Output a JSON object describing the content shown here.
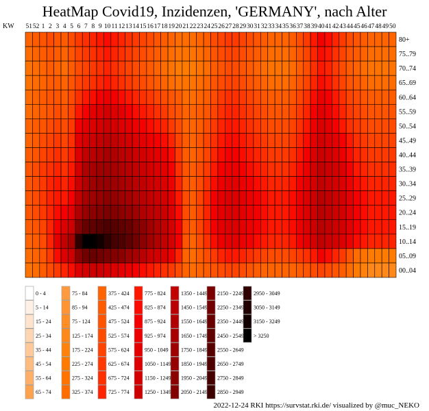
{
  "chart_data": {
    "type": "heatmap",
    "title": "HeatMap Covid19, Inzidenzen, 'GERMANY', nach Alter",
    "xlabel": "KW",
    "x": [
      "51",
      "52",
      "1",
      "2",
      "3",
      "4",
      "5",
      "6",
      "7",
      "8",
      "9",
      "10",
      "11",
      "12",
      "13",
      "14",
      "15",
      "16",
      "17",
      "18",
      "19",
      "20",
      "21",
      "22",
      "23",
      "24",
      "25",
      "26",
      "27",
      "28",
      "29",
      "30",
      "31",
      "32",
      "33",
      "34",
      "35",
      "36",
      "37",
      "38",
      "39",
      "40",
      "41",
      "42",
      "43",
      "44",
      "45",
      "46",
      "47",
      "48",
      "49",
      "50"
    ],
    "y": [
      "80+",
      "75..79",
      "70..74",
      "65..69",
      "60..64",
      "55..59",
      "50..54",
      "45..49",
      "40..44",
      "35..39",
      "30..34",
      "25..29",
      "20..24",
      "15..19",
      "10..14",
      "05..09",
      "00..04"
    ],
    "values": [
      [
        375,
        425,
        475,
        525,
        475,
        425,
        525,
        625,
        675,
        725,
        775,
        825,
        775,
        725,
        675,
        625,
        575,
        525,
        475,
        425,
        375,
        325,
        325,
        325,
        375,
        425,
        525,
        575,
        625,
        625,
        575,
        525,
        475,
        425,
        375,
        375,
        375,
        425,
        525,
        625,
        775,
        875,
        825,
        725,
        625,
        525,
        475,
        425,
        375,
        375,
        375,
        375
      ],
      [
        325,
        375,
        425,
        475,
        425,
        375,
        475,
        575,
        625,
        675,
        725,
        775,
        725,
        675,
        625,
        575,
        525,
        475,
        425,
        375,
        325,
        275,
        275,
        275,
        325,
        375,
        475,
        525,
        575,
        575,
        525,
        475,
        425,
        375,
        325,
        325,
        325,
        375,
        475,
        575,
        725,
        825,
        775,
        675,
        575,
        475,
        425,
        375,
        325,
        325,
        325,
        325
      ],
      [
        275,
        325,
        375,
        425,
        375,
        325,
        425,
        525,
        575,
        625,
        675,
        725,
        675,
        625,
        575,
        525,
        475,
        425,
        375,
        325,
        275,
        225,
        225,
        225,
        275,
        325,
        425,
        475,
        525,
        525,
        475,
        425,
        375,
        325,
        275,
        275,
        275,
        325,
        425,
        525,
        675,
        775,
        725,
        625,
        525,
        425,
        375,
        325,
        275,
        275,
        275,
        275
      ],
      [
        275,
        325,
        375,
        425,
        425,
        375,
        475,
        575,
        625,
        675,
        725,
        775,
        725,
        675,
        625,
        575,
        525,
        475,
        425,
        375,
        325,
        275,
        275,
        275,
        325,
        375,
        475,
        525,
        575,
        575,
        525,
        475,
        425,
        375,
        325,
        325,
        325,
        375,
        475,
        575,
        725,
        825,
        775,
        675,
        575,
        475,
        425,
        375,
        325,
        325,
        325,
        325
      ],
      [
        325,
        375,
        425,
        475,
        475,
        425,
        525,
        675,
        775,
        825,
        875,
        925,
        875,
        825,
        775,
        725,
        675,
        625,
        575,
        525,
        475,
        425,
        325,
        325,
        375,
        425,
        525,
        625,
        675,
        675,
        625,
        575,
        525,
        475,
        425,
        425,
        425,
        475,
        575,
        675,
        825,
        925,
        875,
        775,
        675,
        575,
        525,
        475,
        425,
        425,
        425,
        425
      ],
      [
        325,
        375,
        425,
        475,
        525,
        475,
        575,
        775,
        875,
        975,
        1050,
        1150,
        1050,
        975,
        875,
        825,
        775,
        725,
        675,
        625,
        525,
        475,
        375,
        375,
        425,
        475,
        575,
        675,
        725,
        725,
        675,
        625,
        575,
        525,
        475,
        475,
        475,
        525,
        625,
        725,
        875,
        975,
        925,
        825,
        725,
        625,
        575,
        525,
        475,
        475,
        475,
        475
      ],
      [
        375,
        425,
        475,
        525,
        575,
        525,
        625,
        875,
        975,
        1050,
        1150,
        1250,
        1150,
        1050,
        975,
        925,
        875,
        825,
        775,
        725,
        625,
        525,
        375,
        375,
        425,
        525,
        625,
        725,
        775,
        775,
        725,
        675,
        625,
        575,
        525,
        525,
        525,
        575,
        675,
        775,
        925,
        1050,
        975,
        875,
        775,
        675,
        625,
        575,
        525,
        525,
        525,
        525
      ],
      [
        375,
        425,
        525,
        575,
        625,
        575,
        675,
        975,
        1150,
        1250,
        1350,
        1450,
        1350,
        1250,
        1150,
        1050,
        975,
        925,
        875,
        825,
        725,
        575,
        425,
        375,
        475,
        575,
        675,
        775,
        825,
        825,
        775,
        725,
        675,
        625,
        575,
        575,
        575,
        625,
        725,
        825,
        975,
        1150,
        1050,
        975,
        875,
        775,
        675,
        625,
        575,
        575,
        575,
        575
      ],
      [
        425,
        475,
        575,
        625,
        675,
        625,
        725,
        1050,
        1350,
        1450,
        1550,
        1650,
        1550,
        1450,
        1350,
        1250,
        1150,
        1050,
        975,
        925,
        825,
        625,
        425,
        375,
        475,
        575,
        725,
        825,
        875,
        875,
        825,
        775,
        725,
        675,
        625,
        625,
        625,
        675,
        775,
        875,
        1050,
        1250,
        1150,
        1050,
        925,
        825,
        725,
        675,
        625,
        625,
        625,
        625
      ],
      [
        475,
        525,
        625,
        675,
        725,
        675,
        775,
        1150,
        1550,
        1650,
        1750,
        1750,
        1650,
        1550,
        1450,
        1350,
        1250,
        1150,
        1050,
        975,
        875,
        675,
        475,
        425,
        525,
        625,
        775,
        875,
        925,
        925,
        875,
        825,
        775,
        725,
        675,
        675,
        675,
        725,
        825,
        925,
        1150,
        1350,
        1250,
        1150,
        1050,
        875,
        775,
        725,
        675,
        675,
        675,
        675
      ],
      [
        475,
        525,
        625,
        725,
        775,
        725,
        825,
        1250,
        1550,
        1750,
        1850,
        1850,
        1750,
        1650,
        1550,
        1450,
        1350,
        1250,
        1150,
        1050,
        925,
        725,
        475,
        425,
        525,
        675,
        825,
        925,
        975,
        975,
        925,
        875,
        825,
        775,
        725,
        725,
        725,
        775,
        875,
        975,
        1150,
        1350,
        1250,
        1150,
        1050,
        925,
        825,
        775,
        725,
        725,
        725,
        725
      ],
      [
        475,
        525,
        625,
        725,
        775,
        775,
        875,
        1350,
        1650,
        1750,
        1850,
        1950,
        1850,
        1750,
        1650,
        1550,
        1450,
        1350,
        1250,
        1150,
        975,
        775,
        525,
        425,
        575,
        725,
        875,
        975,
        1050,
        1050,
        975,
        925,
        875,
        825,
        775,
        775,
        775,
        825,
        925,
        1050,
        1250,
        1450,
        1350,
        1250,
        1150,
        975,
        875,
        825,
        775,
        775,
        775,
        775
      ],
      [
        475,
        525,
        625,
        725,
        825,
        875,
        975,
        1550,
        1850,
        1950,
        2050,
        2150,
        2050,
        1950,
        1850,
        1750,
        1550,
        1450,
        1350,
        1250,
        1050,
        825,
        525,
        425,
        575,
        725,
        875,
        975,
        1050,
        1050,
        975,
        925,
        875,
        825,
        775,
        775,
        775,
        825,
        925,
        1050,
        1250,
        1450,
        1350,
        1250,
        1150,
        975,
        875,
        825,
        775,
        775,
        775,
        775
      ],
      [
        425,
        475,
        575,
        725,
        875,
        1050,
        1250,
        2050,
        2350,
        2450,
        2550,
        2650,
        2550,
        2450,
        2350,
        2150,
        1950,
        1750,
        1550,
        1350,
        1150,
        875,
        525,
        425,
        575,
        725,
        875,
        975,
        1050,
        1050,
        975,
        925,
        875,
        825,
        775,
        775,
        775,
        825,
        925,
        1050,
        1250,
        1450,
        1350,
        1250,
        1150,
        975,
        875,
        825,
        775,
        775,
        775,
        775
      ],
      [
        375,
        425,
        525,
        725,
        975,
        1350,
        1650,
        2950,
        3250,
        3250,
        3150,
        2950,
        2750,
        2650,
        2450,
        2250,
        1950,
        1750,
        1550,
        1350,
        1150,
        875,
        475,
        375,
        525,
        675,
        825,
        925,
        975,
        975,
        925,
        875,
        825,
        775,
        725,
        725,
        725,
        775,
        875,
        975,
        1150,
        1350,
        1250,
        1150,
        1050,
        925,
        825,
        775,
        725,
        725,
        725,
        725
      ],
      [
        325,
        375,
        475,
        625,
        825,
        1050,
        1250,
        1950,
        2250,
        2350,
        2250,
        2150,
        2050,
        1950,
        1750,
        1650,
        1450,
        1250,
        1150,
        1050,
        925,
        725,
        375,
        325,
        425,
        525,
        625,
        725,
        775,
        775,
        725,
        675,
        625,
        575,
        525,
        525,
        525,
        575,
        625,
        675,
        775,
        875,
        825,
        725,
        625,
        475,
        325,
        275,
        225,
        225,
        225,
        225
      ],
      [
        275,
        325,
        425,
        525,
        625,
        725,
        825,
        1050,
        1150,
        1250,
        1250,
        1150,
        1050,
        975,
        925,
        875,
        825,
        775,
        725,
        675,
        625,
        525,
        375,
        325,
        375,
        425,
        475,
        525,
        575,
        575,
        525,
        475,
        425,
        375,
        375,
        375,
        375,
        375,
        425,
        475,
        525,
        575,
        525,
        475,
        425,
        325,
        225,
        175,
        125,
        125,
        125,
        125
      ]
    ],
    "legend": [
      "0 - 4",
      "5 - 14",
      "15 - 24",
      "25 - 34",
      "35 - 44",
      "45 - 54",
      "55 - 64",
      "65 - 74",
      "75 - 84",
      "85 - 94",
      "75 - 124",
      "125 - 174",
      "175 - 224",
      "225 - 274",
      "275 - 324",
      "325 - 374",
      "375 - 424",
      "425 - 474",
      "475 - 524",
      "525 - 574",
      "575 - 624",
      "625 - 674",
      "675 - 724",
      "725 - 774",
      "775 - 824",
      "825 - 874",
      "875 - 924",
      "925 - 974",
      "950 - 1049",
      "1050 - 1149",
      "1150 - 1249",
      "1250 - 1349",
      "1350 - 1449",
      "1450 - 1549",
      "1550 - 1649",
      "1650 - 1749",
      "1750 - 1849",
      "1850 - 1949",
      "1950 - 2049",
      "2050 - 2149",
      "2150 - 2249",
      "2250 - 2349",
      "2350 - 2449",
      "2450 - 2549",
      "2550 - 2649",
      "2650 - 2749",
      "2750 - 2849",
      "2850 - 2949",
      "2950 - 3049",
      "3050 - 3149",
      "3150 - 3249",
      "> 3250"
    ],
    "legend_colors": [
      "#ffffff",
      "#fff0e6",
      "#ffe3cc",
      "#ffd6b3",
      "#ffc999",
      "#ffbc80",
      "#ffaf66",
      "#ffa24d",
      "#ff9a40",
      "#ff9433",
      "#ff8e26",
      "#ff881a",
      "#ff820d",
      "#ff7c00",
      "#ff7400",
      "#ff6c00",
      "#ff6400",
      "#ff5c00",
      "#ff5400",
      "#ff4c00",
      "#ff4400",
      "#ff3a00",
      "#ff3000",
      "#ff2400",
      "#ff1800",
      "#fa0c00",
      "#f40000",
      "#ec0000",
      "#e40000",
      "#dc0000",
      "#d40000",
      "#cc0000",
      "#c30000",
      "#ba0000",
      "#b10000",
      "#a80000",
      "#9f0000",
      "#960000",
      "#8d0000",
      "#840000",
      "#7b0000",
      "#720000",
      "#690000",
      "#600000",
      "#570000",
      "#4e0000",
      "#450000",
      "#3c0000",
      "#2e0000",
      "#200000",
      "#120000",
      "#000000"
    ]
  },
  "credit": "2022-12-24 RKI https://survstat.rki.de/ visualized by @muc_NEKO"
}
